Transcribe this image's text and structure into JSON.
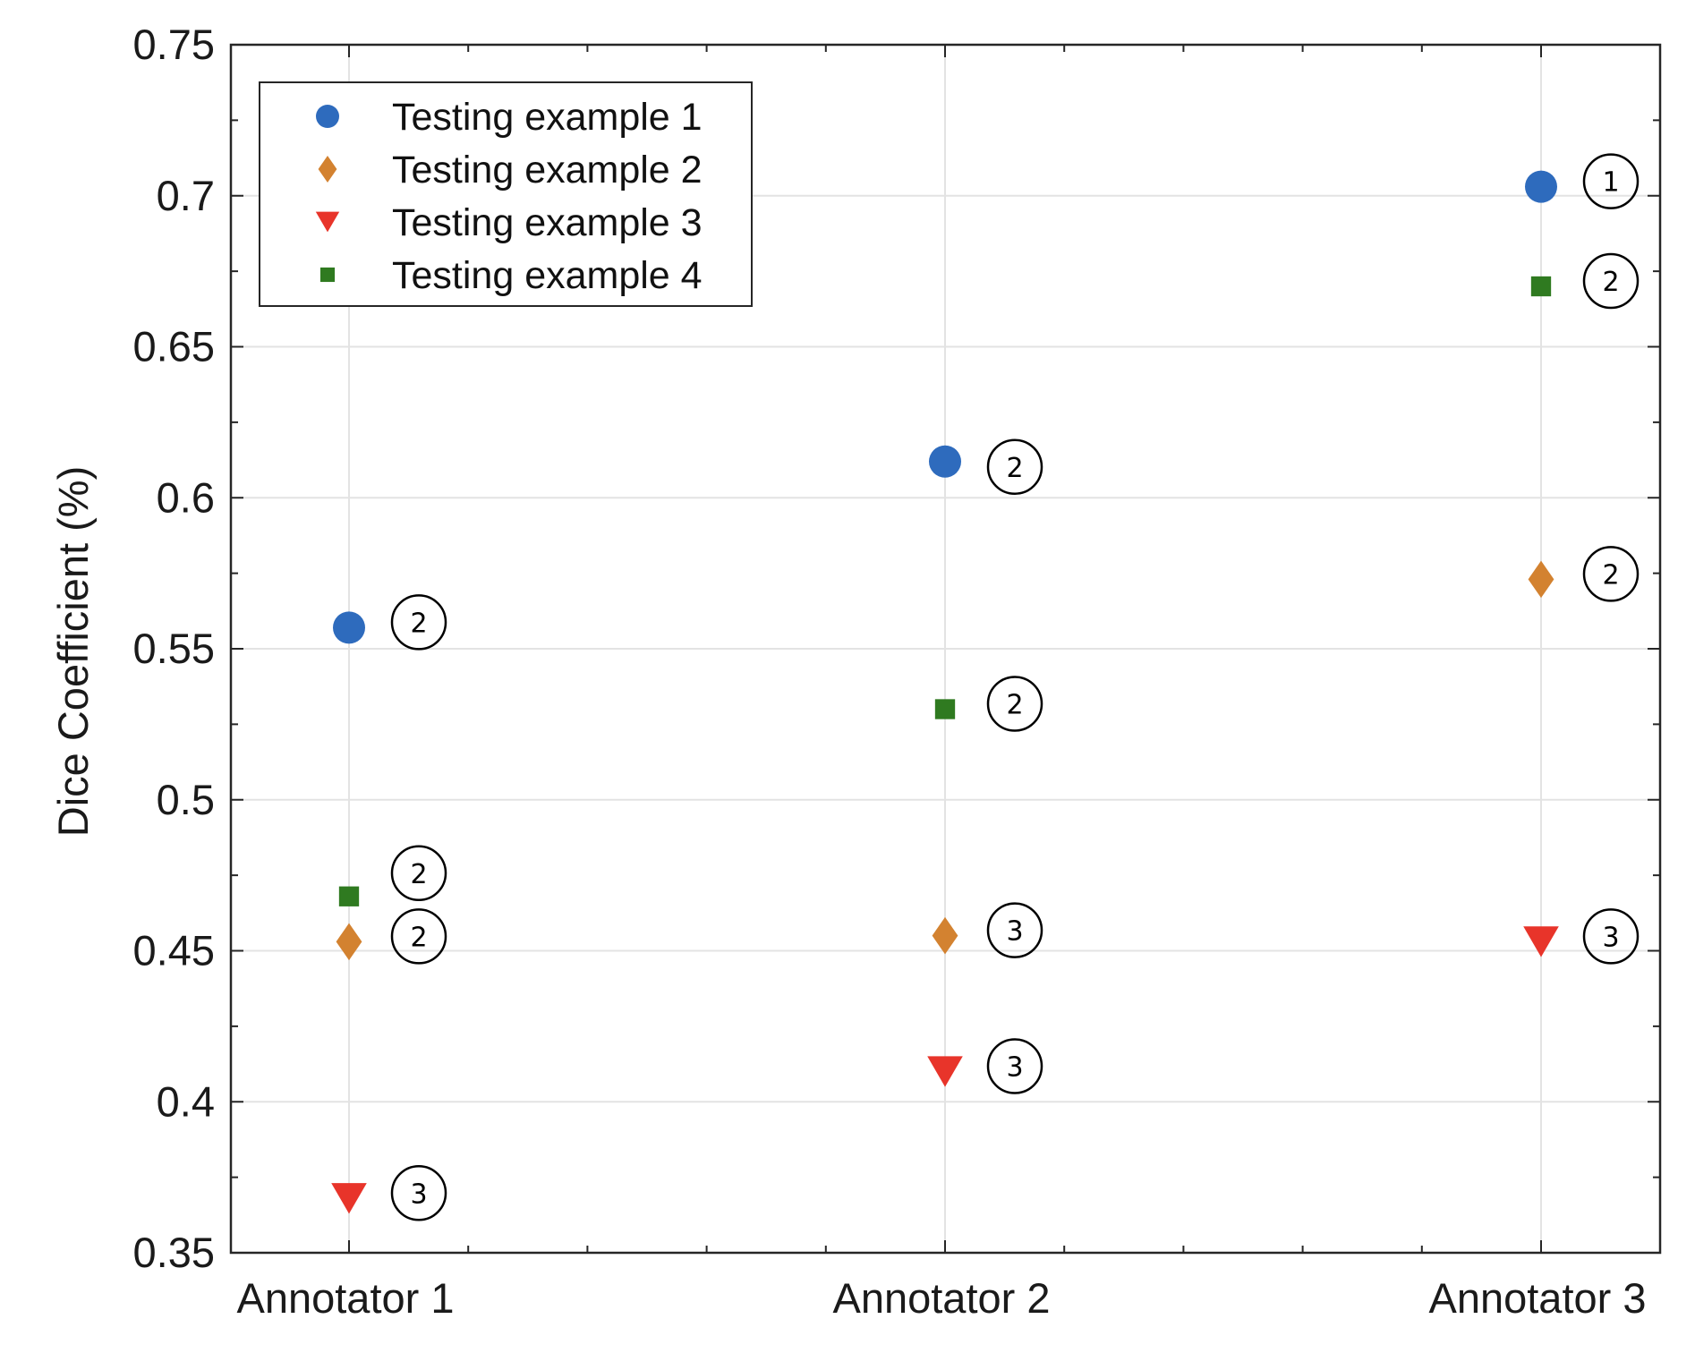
{
  "chart_data": {
    "type": "scatter",
    "ylabel": "Dice Coefficient (%)",
    "xlabel": "",
    "categories": [
      "Annotator 1",
      "Annotator 2",
      "Annotator 3"
    ],
    "ylim": [
      0.35,
      0.75
    ],
    "yticks": [
      0.35,
      0.4,
      0.45,
      0.5,
      0.55,
      0.6,
      0.65,
      0.7,
      0.75
    ],
    "ytick_labels": [
      "0.35",
      "0.4",
      "0.45",
      "0.5",
      "0.55",
      "0.6",
      "0.65",
      "0.7",
      "0.75"
    ],
    "grid": true,
    "legend_position": "top-left",
    "series": [
      {
        "name": "Testing example 1",
        "marker": "circle",
        "color": "#2e6bbd",
        "values": [
          0.557,
          0.612,
          0.703
        ],
        "ranks": [
          "2",
          "2",
          "1"
        ]
      },
      {
        "name": "Testing example 2",
        "marker": "diamond",
        "color": "#d38230",
        "values": [
          0.453,
          0.455,
          0.573
        ],
        "ranks": [
          "2",
          "3",
          "2"
        ]
      },
      {
        "name": "Testing example 3",
        "marker": "triangle-down",
        "color": "#e8342a",
        "values": [
          0.368,
          0.41,
          0.453
        ],
        "ranks": [
          "3",
          "3",
          "3"
        ]
      },
      {
        "name": "Testing example 4",
        "marker": "square",
        "color": "#2f7a20",
        "values": [
          0.468,
          0.53,
          0.67
        ],
        "ranks": [
          "2",
          "2",
          "2"
        ]
      }
    ]
  }
}
